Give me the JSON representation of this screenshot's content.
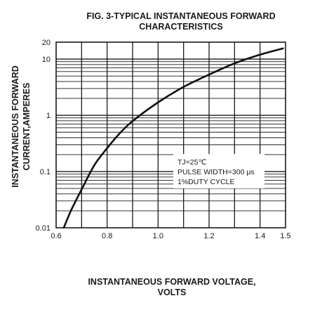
{
  "chart_data": {
    "type": "line",
    "title_lines": [
      "FIG. 3-TYPICAL INSTANTANEOUS FORWARD",
      "CHARACTERISTICS"
    ],
    "xlabel_lines": [
      "INSTANTANEOUS FORWARD VOLTAGE,",
      "VOLTS"
    ],
    "ylabel_lines": [
      "INSTANTANEOUS FORWARD",
      "CURRENT,AMPERES"
    ],
    "xlim": [
      0.6,
      1.5
    ],
    "ylim": [
      0.01,
      20
    ],
    "yscale": "log",
    "grid": true,
    "x_ticks": [
      {
        "value": 0.6,
        "label": "0.6"
      },
      {
        "value": 0.8,
        "label": "0.8"
      },
      {
        "value": 1.0,
        "label": "1.0"
      },
      {
        "value": 1.2,
        "label": "1.2"
      },
      {
        "value": 1.4,
        "label": "1.4"
      },
      {
        "value": 1.5,
        "label": "1.5"
      }
    ],
    "y_ticks": [
      {
        "value": 0.01,
        "label": "0.01"
      },
      {
        "value": 0.1,
        "label": "0.1"
      },
      {
        "value": 1,
        "label": "1"
      },
      {
        "value": 10,
        "label": "10"
      },
      {
        "value": 20,
        "label": "20"
      }
    ],
    "series": [
      {
        "x": [
          0.63,
          0.66,
          0.7,
          0.75,
          0.8,
          0.85,
          0.9,
          1.0,
          1.1,
          1.2,
          1.3,
          1.4,
          1.49
        ],
        "y": [
          0.01,
          0.021,
          0.048,
          0.13,
          0.26,
          0.48,
          0.79,
          1.7,
          3.2,
          5.3,
          8.4,
          12,
          15.5
        ]
      }
    ],
    "annotation": {
      "lines": [
        "TJ=25℃",
        "PULSE WIDTH=300 μs",
        "1%DUTY CYCLE"
      ]
    }
  }
}
